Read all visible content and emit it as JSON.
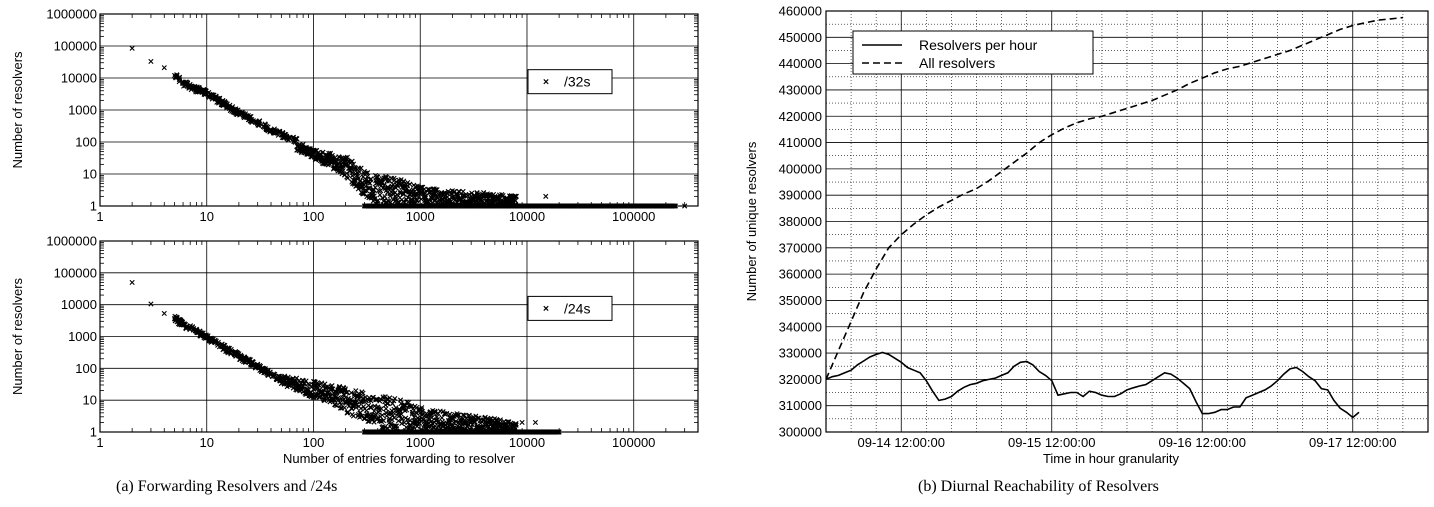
{
  "figure": {
    "caption_a": "(a)  Forwarding Resolvers and /24s",
    "caption_b": "(b)  Diurnal Reachability of Resolvers"
  },
  "chart_data": [
    {
      "id": "top_left",
      "type": "scatter",
      "xlabel": "",
      "ylabel": "Number of resolvers",
      "xscale": "log",
      "yscale": "log",
      "xlim": [
        1,
        400000
      ],
      "ylim": [
        1,
        1000000
      ],
      "xticks": [
        "1",
        "10",
        "100",
        "1000",
        "10000",
        "100000"
      ],
      "yticks": [
        "1",
        "10",
        "100",
        "1000",
        "10000",
        "100000",
        "1000000"
      ],
      "grid": true,
      "legend_position": "right",
      "series": [
        {
          "name": "/32s",
          "marker": "x",
          "points": [
            [
              2,
              85000
            ],
            [
              3,
              33000
            ],
            [
              4,
              21000
            ],
            [
              5,
              12000
            ],
            [
              6,
              6800
            ],
            [
              7,
              5500
            ],
            [
              8,
              4400
            ],
            [
              9,
              3900
            ],
            [
              10,
              3200
            ],
            [
              12,
              2300
            ],
            [
              14,
              1700
            ],
            [
              16,
              1250
            ],
            [
              18,
              1000
            ],
            [
              20,
              800
            ],
            [
              25,
              560
            ],
            [
              30,
              400
            ],
            [
              40,
              240
            ],
            [
              50,
              170
            ],
            [
              60,
              130
            ],
            [
              80,
              85
            ],
            [
              100,
              55
            ],
            [
              150,
              38
            ],
            [
              200,
              32
            ],
            [
              230,
              25
            ],
            [
              300,
              12
            ],
            [
              400,
              8
            ],
            [
              500,
              7
            ],
            [
              700,
              6
            ],
            [
              1000,
              3
            ],
            [
              2000,
              3
            ],
            [
              3000,
              2
            ],
            [
              5000,
              2
            ],
            [
              7000,
              2
            ],
            [
              10000,
              1
            ],
            [
              15000,
              2
            ],
            [
              30000,
              1
            ],
            [
              100000,
              1
            ],
            [
              300000,
              1
            ]
          ],
          "band_top": [
            [
              70,
              90
            ],
            [
              100,
              60
            ],
            [
              150,
              45
            ],
            [
              200,
              35
            ],
            [
              250,
              28
            ],
            [
              300,
              12
            ],
            [
              400,
              9
            ],
            [
              600,
              8
            ],
            [
              800,
              5
            ],
            [
              1000,
              4
            ],
            [
              2000,
              3
            ],
            [
              5000,
              2.5
            ],
            [
              8000,
              2
            ]
          ],
          "band_bottom": [
            [
              70,
              55
            ],
            [
              100,
              30
            ],
            [
              150,
              15
            ],
            [
              200,
              8
            ],
            [
              250,
              4
            ],
            [
              300,
              2
            ],
            [
              400,
              1
            ],
            [
              10000,
              1
            ]
          ],
          "floor_range": [
            300,
            250000
          ]
        }
      ]
    },
    {
      "id": "bottom_left",
      "type": "scatter",
      "xlabel": "Number of entries forwarding to resolver",
      "ylabel": "Number of resolvers",
      "xscale": "log",
      "yscale": "log",
      "xlim": [
        1,
        400000
      ],
      "ylim": [
        1,
        1000000
      ],
      "xticks": [
        "1",
        "10",
        "100",
        "1000",
        "10000",
        "100000"
      ],
      "yticks": [
        "1",
        "10",
        "100",
        "1000",
        "10000",
        "100000",
        "1000000"
      ],
      "grid": true,
      "legend_position": "right",
      "series": [
        {
          "name": "/24s",
          "marker": "x",
          "points": [
            [
              2,
              50000
            ],
            [
              3,
              10500
            ],
            [
              4,
              5300
            ],
            [
              5,
              3700
            ],
            [
              6,
              2400
            ],
            [
              7,
              1900
            ],
            [
              8,
              1450
            ],
            [
              9,
              1150
            ],
            [
              10,
              900
            ],
            [
              12,
              650
            ],
            [
              14,
              480
            ],
            [
              16,
              360
            ],
            [
              18,
              290
            ],
            [
              20,
              240
            ],
            [
              25,
              160
            ],
            [
              30,
              110
            ],
            [
              40,
              65
            ],
            [
              50,
              45
            ],
            [
              60,
              35
            ],
            [
              80,
              28
            ],
            [
              100,
              22
            ],
            [
              150,
              15
            ],
            [
              200,
              12
            ],
            [
              300,
              9
            ],
            [
              500,
              8
            ],
            [
              700,
              7
            ],
            [
              1000,
              4
            ],
            [
              2000,
              3
            ],
            [
              3000,
              2
            ],
            [
              5000,
              2
            ],
            [
              9000,
              2
            ],
            [
              12000,
              2
            ],
            [
              15000,
              1
            ],
            [
              20000,
              1
            ]
          ],
          "band_top": [
            [
              50,
              60
            ],
            [
              100,
              40
            ],
            [
              200,
              25
            ],
            [
              400,
              14
            ],
            [
              600,
              12
            ],
            [
              800,
              8
            ],
            [
              1000,
              6
            ],
            [
              2000,
              4
            ],
            [
              4000,
              3
            ],
            [
              8000,
              2
            ]
          ],
          "band_bottom": [
            [
              50,
              30
            ],
            [
              100,
              12
            ],
            [
              150,
              8
            ],
            [
              200,
              4
            ],
            [
              300,
              2
            ],
            [
              400,
              1
            ],
            [
              8000,
              1
            ]
          ],
          "floor_range": [
            300,
            20000
          ]
        }
      ]
    },
    {
      "id": "right",
      "type": "line",
      "xlabel": "Time in hour granularity",
      "ylabel": "Number of unique resolvers",
      "xlim": [
        0,
        96
      ],
      "ylim": [
        300000,
        460000
      ],
      "xticks": [
        {
          "x": 12,
          "label": "09-14 12:00:00"
        },
        {
          "x": 36,
          "label": "09-15 12:00:00"
        },
        {
          "x": 60,
          "label": "09-16 12:00:00"
        },
        {
          "x": 84,
          "label": "09-17 12:00:00"
        }
      ],
      "yticks": [
        "300000",
        "310000",
        "320000",
        "330000",
        "340000",
        "350000",
        "360000",
        "370000",
        "380000",
        "390000",
        "400000",
        "410000",
        "420000",
        "430000",
        "440000",
        "450000",
        "460000"
      ],
      "grid": true,
      "legend_position": "top-left",
      "series": [
        {
          "name": "Resolvers per hour",
          "dash": "solid",
          "points": [
            [
              0,
              320000
            ],
            [
              1,
              321000
            ],
            [
              2,
              321500
            ],
            [
              3,
              322500
            ],
            [
              4,
              323500
            ],
            [
              5,
              325500
            ],
            [
              6,
              327000
            ],
            [
              7,
              328500
            ],
            [
              8,
              329500
            ],
            [
              9,
              330200
            ],
            [
              10,
              329500
            ],
            [
              11,
              328000
            ],
            [
              12,
              326500
            ],
            [
              13,
              324500
            ],
            [
              14,
              323500
            ],
            [
              15,
              322500
            ],
            [
              16,
              319500
            ],
            [
              17,
              315500
            ],
            [
              18,
              312000
            ],
            [
              19,
              312500
            ],
            [
              20,
              313500
            ],
            [
              21,
              315500
            ],
            [
              22,
              317000
            ],
            [
              23,
              318000
            ],
            [
              24,
              318500
            ],
            [
              25,
              319500
            ],
            [
              26,
              320000
            ],
            [
              27,
              320500
            ],
            [
              28,
              321500
            ],
            [
              29,
              322500
            ],
            [
              30,
              325000
            ],
            [
              31,
              326500
            ],
            [
              32,
              326800
            ],
            [
              33,
              325500
            ],
            [
              34,
              323000
            ],
            [
              35,
              321500
            ],
            [
              36,
              319500
            ],
            [
              37,
              314000
            ],
            [
              38,
              314500
            ],
            [
              39,
              315000
            ],
            [
              40,
              315000
            ],
            [
              41,
              313500
            ],
            [
              42,
              315500
            ],
            [
              43,
              315000
            ],
            [
              44,
              314000
            ],
            [
              45,
              313500
            ],
            [
              46,
              313500
            ],
            [
              47,
              314500
            ],
            [
              48,
              316000
            ],
            [
              49,
              316800
            ],
            [
              50,
              317500
            ],
            [
              51,
              318000
            ],
            [
              52,
              319500
            ],
            [
              53,
              321000
            ],
            [
              54,
              322500
            ],
            [
              55,
              322000
            ],
            [
              56,
              320500
            ],
            [
              57,
              318500
            ],
            [
              58,
              316500
            ],
            [
              59,
              311500
            ],
            [
              60,
              307000
            ],
            [
              61,
              307000
            ],
            [
              62,
              307500
            ],
            [
              63,
              308500
            ],
            [
              64,
              308500
            ],
            [
              65,
              309500
            ],
            [
              66,
              309500
            ],
            [
              67,
              313000
            ],
            [
              68,
              314000
            ],
            [
              69,
              315000
            ],
            [
              70,
              316000
            ],
            [
              71,
              317500
            ],
            [
              72,
              319500
            ],
            [
              73,
              322000
            ],
            [
              74,
              324000
            ],
            [
              75,
              324500
            ],
            [
              76,
              323000
            ],
            [
              77,
              321000
            ],
            [
              78,
              319500
            ],
            [
              79,
              316500
            ],
            [
              80,
              316000
            ],
            [
              81,
              312000
            ],
            [
              82,
              309000
            ],
            [
              83,
              307500
            ],
            [
              84,
              305500
            ],
            [
              85,
              307500
            ]
          ]
        },
        {
          "name": "All resolvers",
          "dash": "dashed",
          "points": [
            [
              0,
              320000
            ],
            [
              2,
              331000
            ],
            [
              4,
              342000
            ],
            [
              6,
              353000
            ],
            [
              8,
              362000
            ],
            [
              10,
              370000
            ],
            [
              12,
              375000
            ],
            [
              14,
              379000
            ],
            [
              16,
              382500
            ],
            [
              18,
              385500
            ],
            [
              20,
              388000
            ],
            [
              22,
              390500
            ],
            [
              24,
              392500
            ],
            [
              26,
              395500
            ],
            [
              28,
              399000
            ],
            [
              30,
              402500
            ],
            [
              32,
              406000
            ],
            [
              34,
              410000
            ],
            [
              36,
              413000
            ],
            [
              38,
              415500
            ],
            [
              40,
              417500
            ],
            [
              42,
              419000
            ],
            [
              44,
              420000
            ],
            [
              46,
              421500
            ],
            [
              48,
              423000
            ],
            [
              50,
              424500
            ],
            [
              52,
              426000
            ],
            [
              54,
              428000
            ],
            [
              56,
              430000
            ],
            [
              58,
              432500
            ],
            [
              60,
              434500
            ],
            [
              62,
              436500
            ],
            [
              64,
              438000
            ],
            [
              66,
              439000
            ],
            [
              68,
              440500
            ],
            [
              70,
              442000
            ],
            [
              72,
              443500
            ],
            [
              74,
              445000
            ],
            [
              76,
              447000
            ],
            [
              78,
              449000
            ],
            [
              80,
              451000
            ],
            [
              82,
              453000
            ],
            [
              84,
              454500
            ],
            [
              86,
              455500
            ],
            [
              88,
              456500
            ],
            [
              90,
              457000
            ],
            [
              92,
              457500
            ]
          ]
        }
      ]
    }
  ]
}
